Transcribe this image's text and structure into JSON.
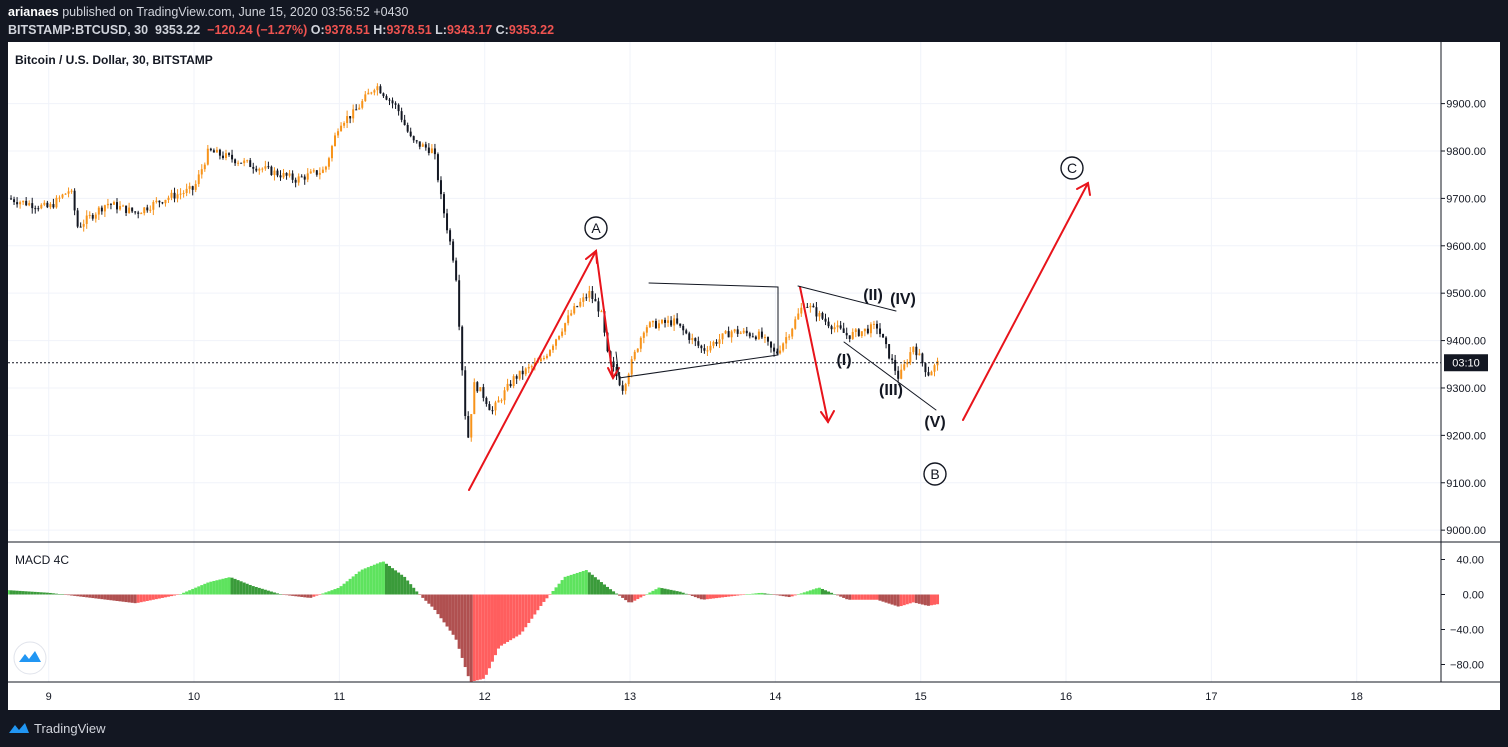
{
  "header": {
    "publisher": "arianaes",
    "published_text": "published on TradingView.com, June 15, 2020 03:56:52 +0430",
    "symbol": "BITSTAMP:BTCUSD, 30",
    "last": "9353.22",
    "change": "−120.24 (−1.27%)",
    "o_label": "O:",
    "o_value": "9378.51",
    "h_label": "H:",
    "h_value": "9378.51",
    "l_label": "L:",
    "l_value": "9343.17",
    "c_label": "C:",
    "c_value": "9353.22"
  },
  "footer": {
    "brand": "TradingView"
  },
  "colors": {
    "up": "#f7931a",
    "down": "#131722",
    "arrow": "#e8141b",
    "hist_pos": "#5ee35e",
    "hist_neg": "#ff5e5e",
    "hist_pos_dark": "#3a9b3a",
    "hist_neg_dark": "#b05050"
  },
  "chart_data": [
    {
      "type": "candlestick",
      "title": "Bitcoin / U.S. Dollar, 30, BITSTAMP",
      "x_ticks": [
        "9",
        "10",
        "11",
        "12",
        "13",
        "14",
        "15",
        "16",
        "17",
        "18"
      ],
      "y_ticks": [
        "9900.00",
        "9800.00",
        "9700.00",
        "9600.00",
        "9500.00",
        "9400.00",
        "9300.00",
        "9200.00",
        "9100.00",
        "9000.00"
      ],
      "ylim": [
        8975,
        10030
      ],
      "xlim": [
        8.72,
        18.58
      ],
      "current_price_line": 9353.22,
      "current_label": "03:10",
      "price_path": [
        [
          8.72,
          9700
        ],
        [
          8.85,
          9690
        ],
        [
          9.0,
          9680
        ],
        [
          9.15,
          9720
        ],
        [
          9.2,
          9640
        ],
        [
          9.4,
          9690
        ],
        [
          9.6,
          9670
        ],
        [
          9.8,
          9700
        ],
        [
          10.0,
          9720
        ],
        [
          10.1,
          9800
        ],
        [
          10.3,
          9780
        ],
        [
          10.5,
          9760
        ],
        [
          10.7,
          9740
        ],
        [
          10.9,
          9760
        ],
        [
          11.0,
          9860
        ],
        [
          11.1,
          9880
        ],
        [
          11.25,
          9940
        ],
        [
          11.4,
          9890
        ],
        [
          11.5,
          9820
        ],
        [
          11.65,
          9800
        ],
        [
          11.7,
          9700
        ],
        [
          11.8,
          9550
        ],
        [
          11.88,
          9180
        ],
        [
          11.93,
          9310
        ],
        [
          12.0,
          9280
        ],
        [
          12.05,
          9250
        ],
        [
          12.2,
          9320
        ],
        [
          12.4,
          9360
        ],
        [
          12.6,
          9460
        ],
        [
          12.72,
          9500
        ],
        [
          12.8,
          9460
        ],
        [
          12.85,
          9360
        ],
        [
          12.95,
          9300
        ],
        [
          13.1,
          9430
        ],
        [
          13.3,
          9440
        ],
        [
          13.5,
          9380
        ],
        [
          13.7,
          9420
        ],
        [
          13.9,
          9410
        ],
        [
          14.0,
          9370
        ],
        [
          14.1,
          9420
        ],
        [
          14.2,
          9480
        ],
        [
          14.35,
          9440
        ],
        [
          14.5,
          9410
        ],
        [
          14.7,
          9430
        ],
        [
          14.85,
          9320
        ],
        [
          14.95,
          9390
        ],
        [
          15.05,
          9330
        ],
        [
          15.12,
          9353
        ]
      ],
      "annotations": {
        "wave_A": "A",
        "wave_B": "B",
        "wave_C": "C",
        "sub_1": "(I)",
        "sub_2": "(II)",
        "sub_3": "(III)",
        "sub_4": "(IV)",
        "sub_5": "(V)"
      }
    },
    {
      "type": "histogram",
      "title": "MACD 4C",
      "y_ticks": [
        "40.00",
        "0.00",
        "−40.00",
        "−80.00"
      ],
      "ylim": [
        -100,
        60
      ],
      "hist_path": [
        [
          8.72,
          5
        ],
        [
          9.0,
          2
        ],
        [
          9.3,
          -4
        ],
        [
          9.6,
          -10
        ],
        [
          9.9,
          0
        ],
        [
          10.1,
          14
        ],
        [
          10.25,
          20
        ],
        [
          10.4,
          10
        ],
        [
          10.6,
          0
        ],
        [
          10.8,
          -4
        ],
        [
          11.0,
          8
        ],
        [
          11.15,
          28
        ],
        [
          11.3,
          38
        ],
        [
          11.45,
          20
        ],
        [
          11.55,
          0
        ],
        [
          11.65,
          -16
        ],
        [
          11.8,
          -50
        ],
        [
          11.9,
          -100
        ],
        [
          12.0,
          -96
        ],
        [
          12.1,
          -60
        ],
        [
          12.25,
          -45
        ],
        [
          12.4,
          -10
        ],
        [
          12.55,
          20
        ],
        [
          12.7,
          28
        ],
        [
          12.85,
          8
        ],
        [
          13.0,
          -10
        ],
        [
          13.2,
          8
        ],
        [
          13.35,
          3
        ],
        [
          13.5,
          -6
        ],
        [
          13.7,
          -2
        ],
        [
          13.9,
          2
        ],
        [
          14.1,
          -3
        ],
        [
          14.3,
          8
        ],
        [
          14.5,
          -6
        ],
        [
          14.7,
          -6
        ],
        [
          14.85,
          -14
        ],
        [
          14.95,
          -9
        ],
        [
          15.05,
          -13
        ],
        [
          15.12,
          -11
        ]
      ]
    }
  ]
}
